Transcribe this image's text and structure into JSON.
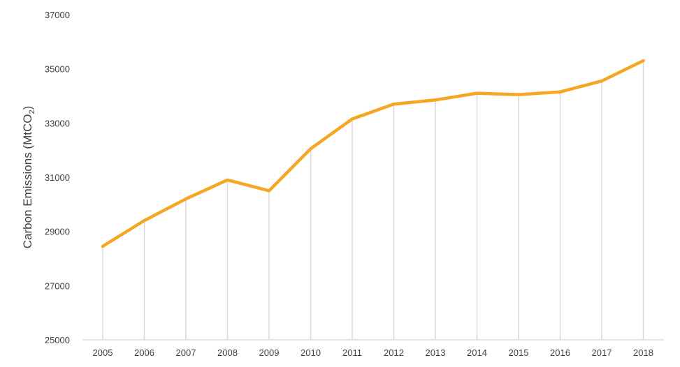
{
  "chart_data": {
    "type": "line",
    "title": "",
    "xlabel": "",
    "ylabel": {
      "main": "Carbon Emissions (MtCO",
      "subscript": "2",
      "suffix": ")"
    },
    "ylim": [
      25000,
      37000
    ],
    "yticks": [
      "25000",
      "27000",
      "29000",
      "31000",
      "33000",
      "35000",
      "37000"
    ],
    "x": [
      "2005",
      "2006",
      "2007",
      "2008",
      "2009",
      "2010",
      "2011",
      "2012",
      "2013",
      "2014",
      "2015",
      "2016",
      "2017",
      "2018"
    ],
    "series": [
      {
        "values": [
          28450,
          29400,
          30200,
          30900,
          30500,
          32050,
          33150,
          33700,
          33850,
          34100,
          34050,
          34150,
          34550,
          35300
        ],
        "color": "#f5a623"
      }
    ],
    "drop_lines": true,
    "drop_line_color": "#d9d9d9",
    "grid": false,
    "legend": "none"
  }
}
